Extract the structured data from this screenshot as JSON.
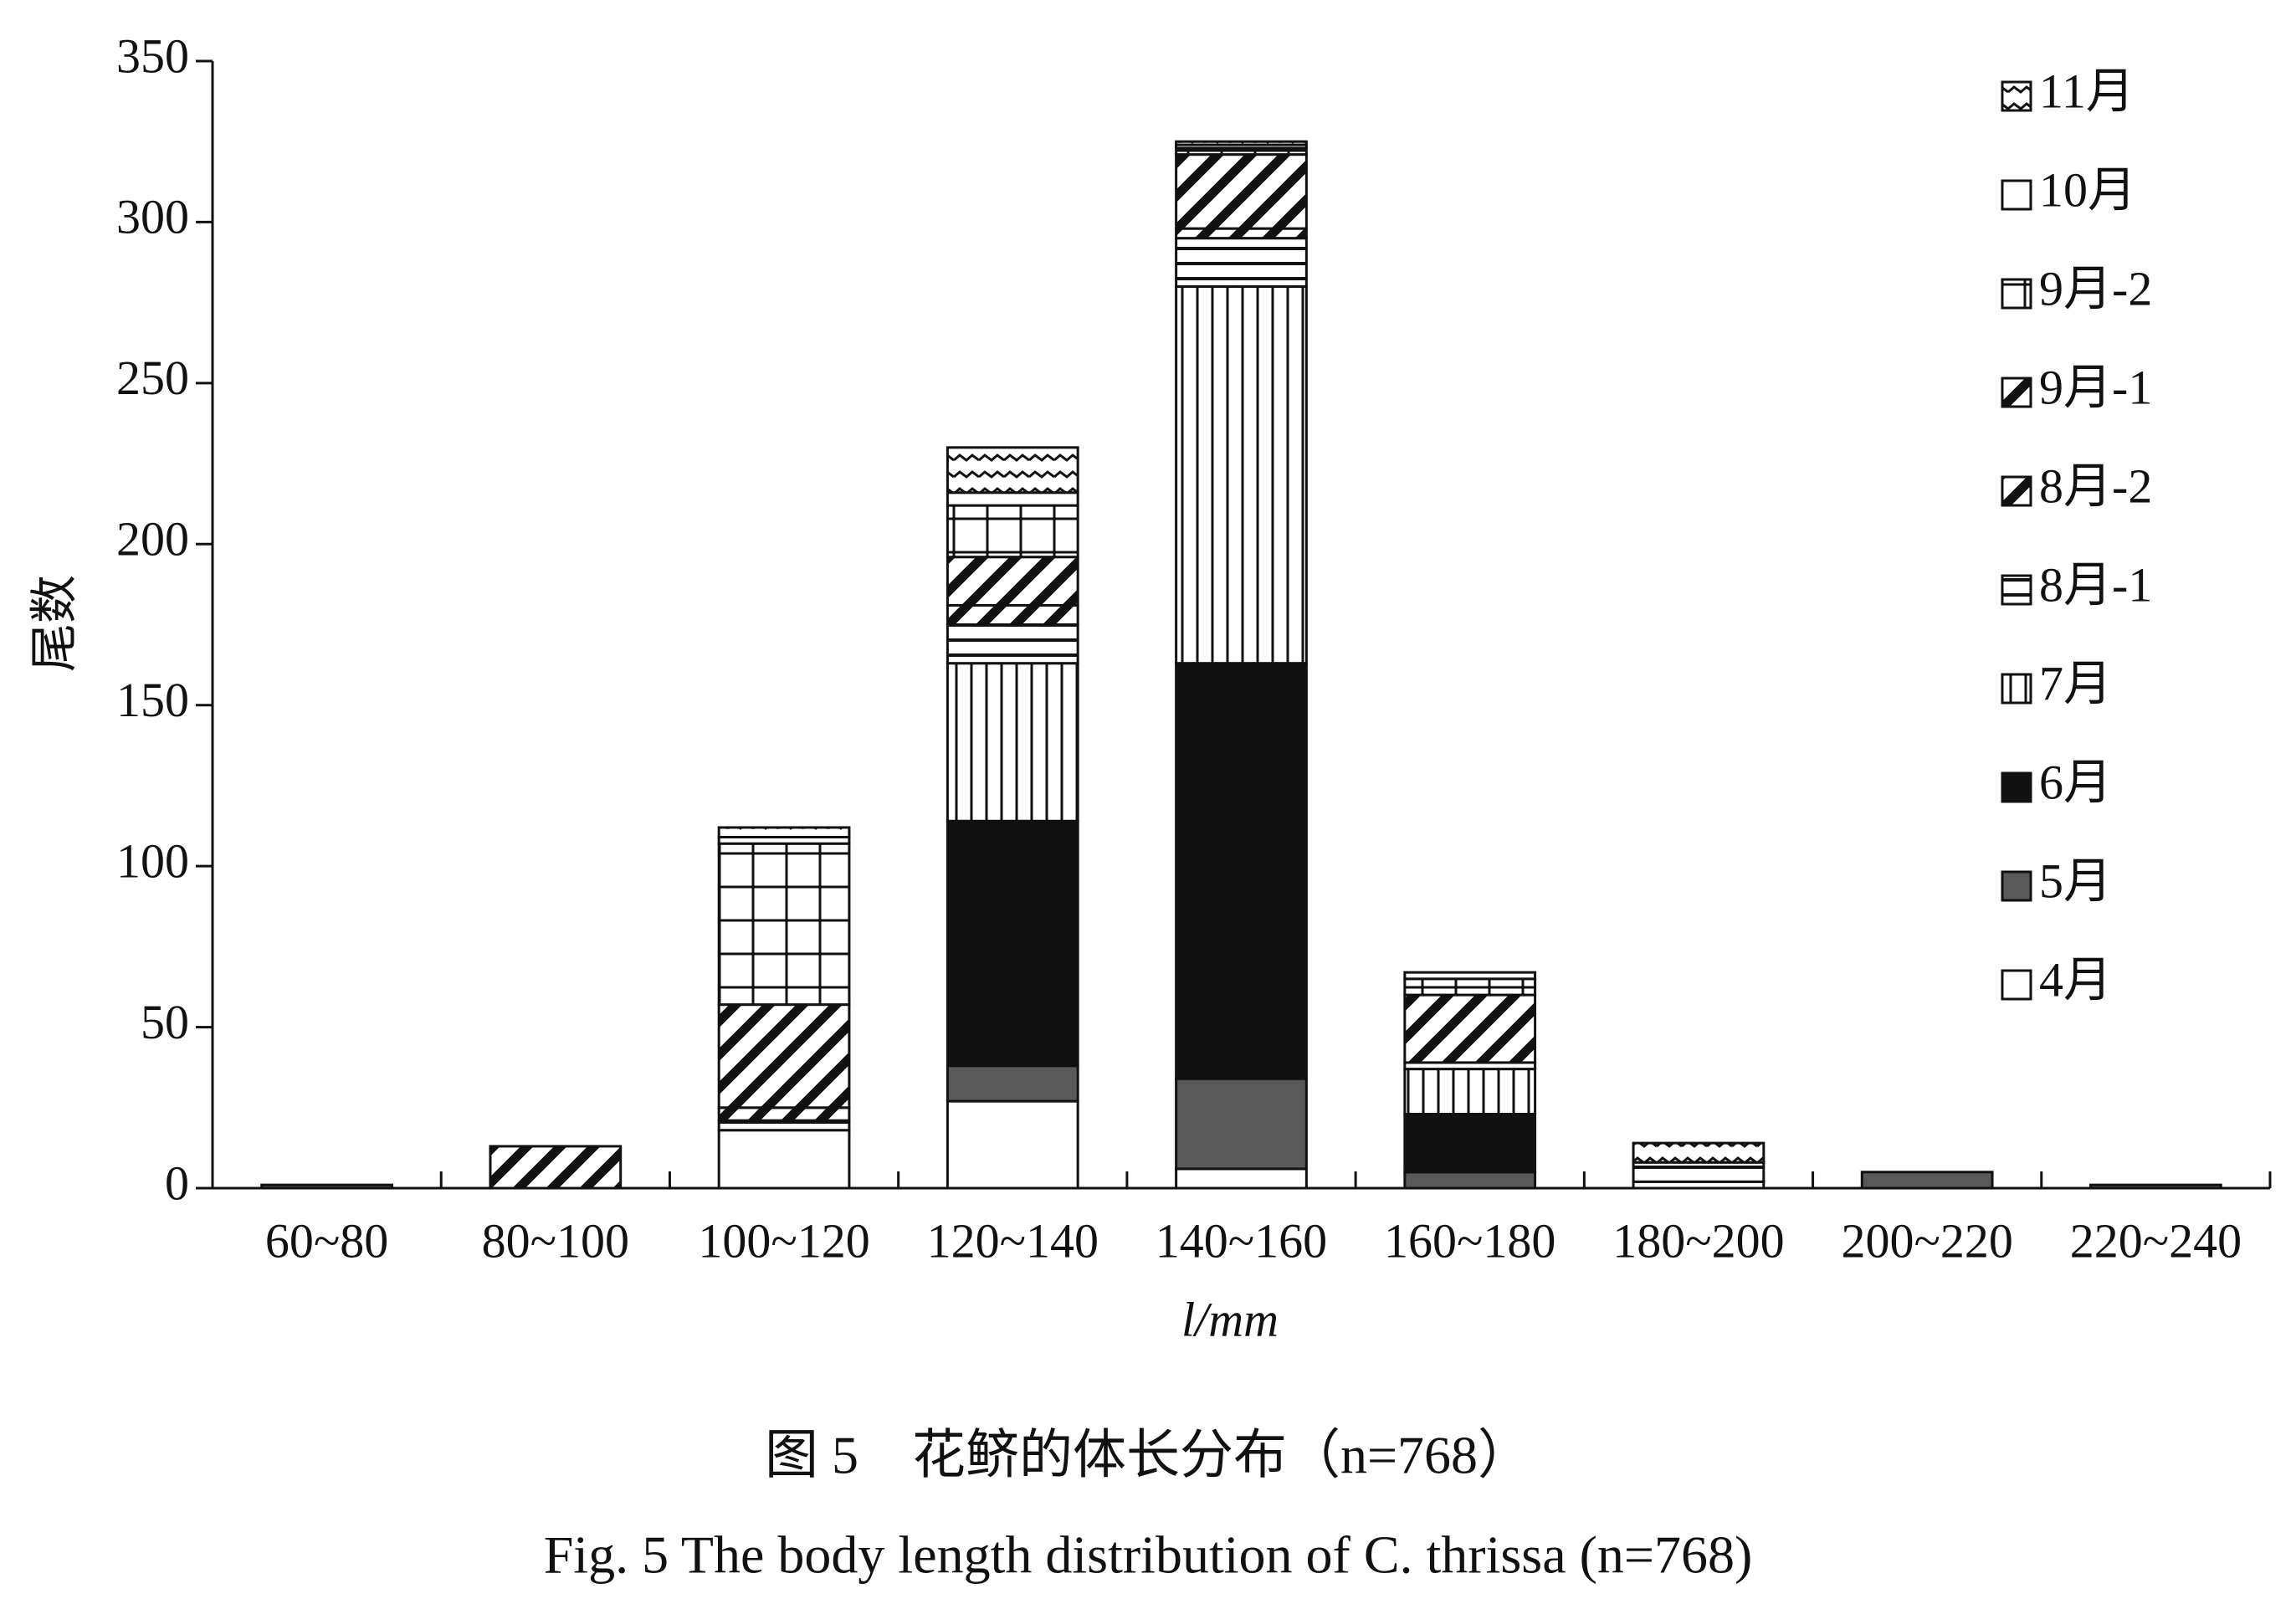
{
  "chart_data": {
    "type": "stacked_bar",
    "ylabel": "尾数",
    "xlabel": "l/mm",
    "caption_cn": "图 5　花鲚的体长分布（n=768）",
    "caption_en": "Fig. 5  The body length distribution of C. thrissa (n=768)",
    "categories": [
      "60~80",
      "80~100",
      "100~120",
      "120~140",
      "140~160",
      "160~180",
      "180~200",
      "200~220",
      "220~240"
    ],
    "series": [
      {
        "name": "4月",
        "color": "#ffffff",
        "pattern": "none",
        "values": [
          0,
          0,
          18,
          27,
          6,
          0,
          2,
          0,
          0
        ]
      },
      {
        "name": "5月",
        "color": "#595959",
        "pattern": "none",
        "values": [
          1,
          0,
          0,
          11,
          28,
          5,
          0,
          5,
          1
        ]
      },
      {
        "name": "6月",
        "color": "#111111",
        "pattern": "none",
        "values": [
          0,
          0,
          0,
          76,
          129,
          18,
          0,
          0,
          0
        ]
      },
      {
        "name": "7月",
        "color": "#ffffff",
        "pattern": "vlines",
        "values": [
          0,
          0,
          0,
          49,
          117,
          14,
          0,
          0,
          0
        ]
      },
      {
        "name": "8月-1",
        "color": "#ffffff",
        "pattern": "hlines",
        "values": [
          0,
          0,
          3,
          12,
          15,
          2,
          6,
          0,
          0
        ]
      },
      {
        "name": "8月-2",
        "color": "#ffffff",
        "pattern": "diag",
        "values": [
          0,
          13,
          4,
          6,
          3,
          0,
          0,
          0,
          0
        ]
      },
      {
        "name": "9月-1",
        "color": "#ffffff",
        "pattern": "diag",
        "values": [
          0,
          0,
          32,
          15,
          23,
          21,
          0,
          0,
          0
        ]
      },
      {
        "name": "9月-2",
        "color": "#ffffff",
        "pattern": "grid",
        "values": [
          0,
          0,
          50,
          16,
          2,
          5,
          0,
          0,
          0
        ]
      },
      {
        "name": "10月",
        "color": "#ffffff",
        "pattern": "none",
        "values": [
          0,
          0,
          2,
          4,
          1,
          2,
          0,
          0,
          0
        ]
      },
      {
        "name": "11月",
        "color": "#ffffff",
        "pattern": "zigzag",
        "values": [
          0,
          0,
          3,
          14,
          1,
          0,
          6,
          0,
          0
        ]
      }
    ],
    "ylim": [
      0,
      350
    ],
    "yticks": [
      0,
      50,
      100,
      150,
      200,
      250,
      300,
      350
    ],
    "grid": false,
    "legend": "top-right",
    "legend_order": "reversed"
  }
}
